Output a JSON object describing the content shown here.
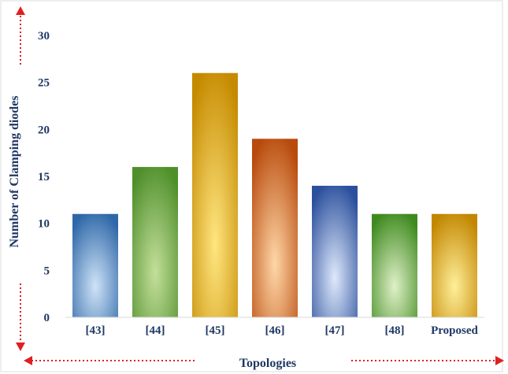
{
  "chart_data": {
    "type": "bar",
    "title": "",
    "xlabel": "Topologies",
    "ylabel": "Number of Clamping diodes",
    "categories": [
      "[43]",
      "[44]",
      "[45]",
      "[46]",
      "[47]",
      "[48]",
      "Proposed"
    ],
    "values": [
      11,
      16,
      26,
      19,
      14,
      11,
      11
    ],
    "ylim": [
      0,
      30
    ],
    "yticks": [
      "0",
      "5",
      "10",
      "15",
      "20",
      "25",
      "30"
    ],
    "grid": false,
    "legend": "none",
    "colors": {
      "axis_text": "#1f3864",
      "arrows": "#e02020",
      "frame": "#e8e8e8",
      "bars": [
        {
          "light": "#cfe3f7",
          "dark": "#2e67a8"
        },
        {
          "light": "#c4df9b",
          "dark": "#4e8f2a"
        },
        {
          "light": "#ffe680",
          "dark": "#c58a00"
        },
        {
          "light": "#ffd7a8",
          "dark": "#b84a0c"
        },
        {
          "light": "#dfe9fb",
          "dark": "#2a4f9c"
        },
        {
          "light": "#dff0c8",
          "dark": "#3f8a1f"
        },
        {
          "light": "#ffef9a",
          "dark": "#c28600"
        }
      ]
    }
  }
}
